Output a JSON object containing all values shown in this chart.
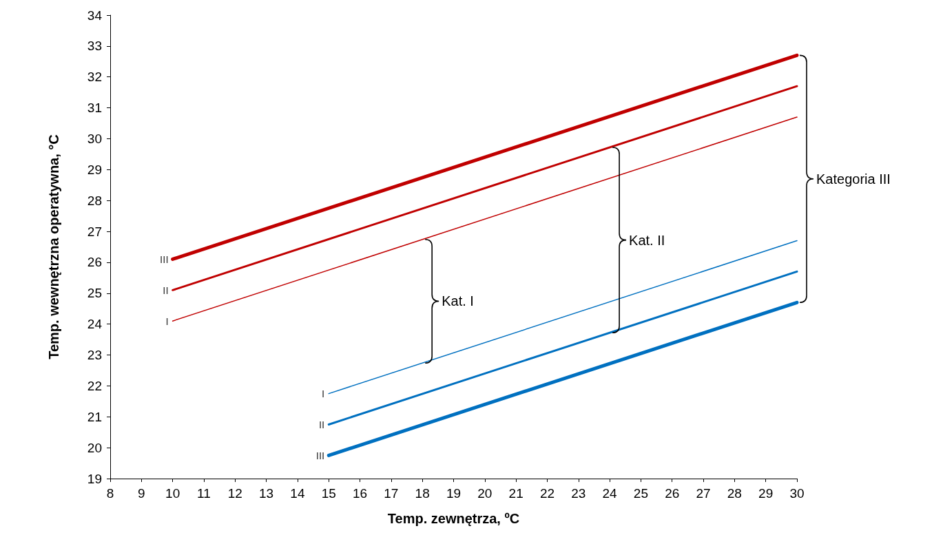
{
  "chart_data": {
    "type": "line",
    "xlabel": "Temp. zewnętrza, ºC",
    "ylabel": "Temp. wewnętrzna operatywna, °C",
    "xlim": [
      8,
      30
    ],
    "xticks": [
      8,
      9,
      10,
      11,
      12,
      13,
      14,
      15,
      16,
      17,
      18,
      19,
      20,
      21,
      22,
      23,
      24,
      25,
      26,
      27,
      28,
      29,
      30
    ],
    "ylim": [
      19,
      34
    ],
    "yticks": [
      19,
      20,
      21,
      22,
      23,
      24,
      25,
      26,
      27,
      28,
      29,
      30,
      31,
      32,
      33,
      34
    ],
    "grid": false,
    "legend": false,
    "marker": "none",
    "line_style": "solid",
    "series": [
      {
        "name": "I",
        "color": "#c00000",
        "x": [
          10,
          30
        ],
        "values": [
          24.1,
          30.7
        ]
      },
      {
        "name": "II",
        "color": "#c00000",
        "x": [
          10,
          30
        ],
        "values": [
          25.1,
          31.7
        ]
      },
      {
        "name": "III",
        "color": "#c00000",
        "x": [
          10,
          30
        ],
        "values": [
          26.1,
          32.7
        ]
      },
      {
        "name": "I",
        "color": "#0070c0",
        "x": [
          15,
          30
        ],
        "values": [
          21.75,
          26.7
        ]
      },
      {
        "name": "II",
        "color": "#0070c0",
        "x": [
          15,
          30
        ],
        "values": [
          20.75,
          25.7
        ]
      },
      {
        "name": "III",
        "color": "#0070c0",
        "x": [
          15,
          30
        ],
        "values": [
          19.75,
          24.7
        ]
      }
    ],
    "annotations": [
      "Kat. I",
      "Kat. II",
      "Kategoria III"
    ]
  }
}
